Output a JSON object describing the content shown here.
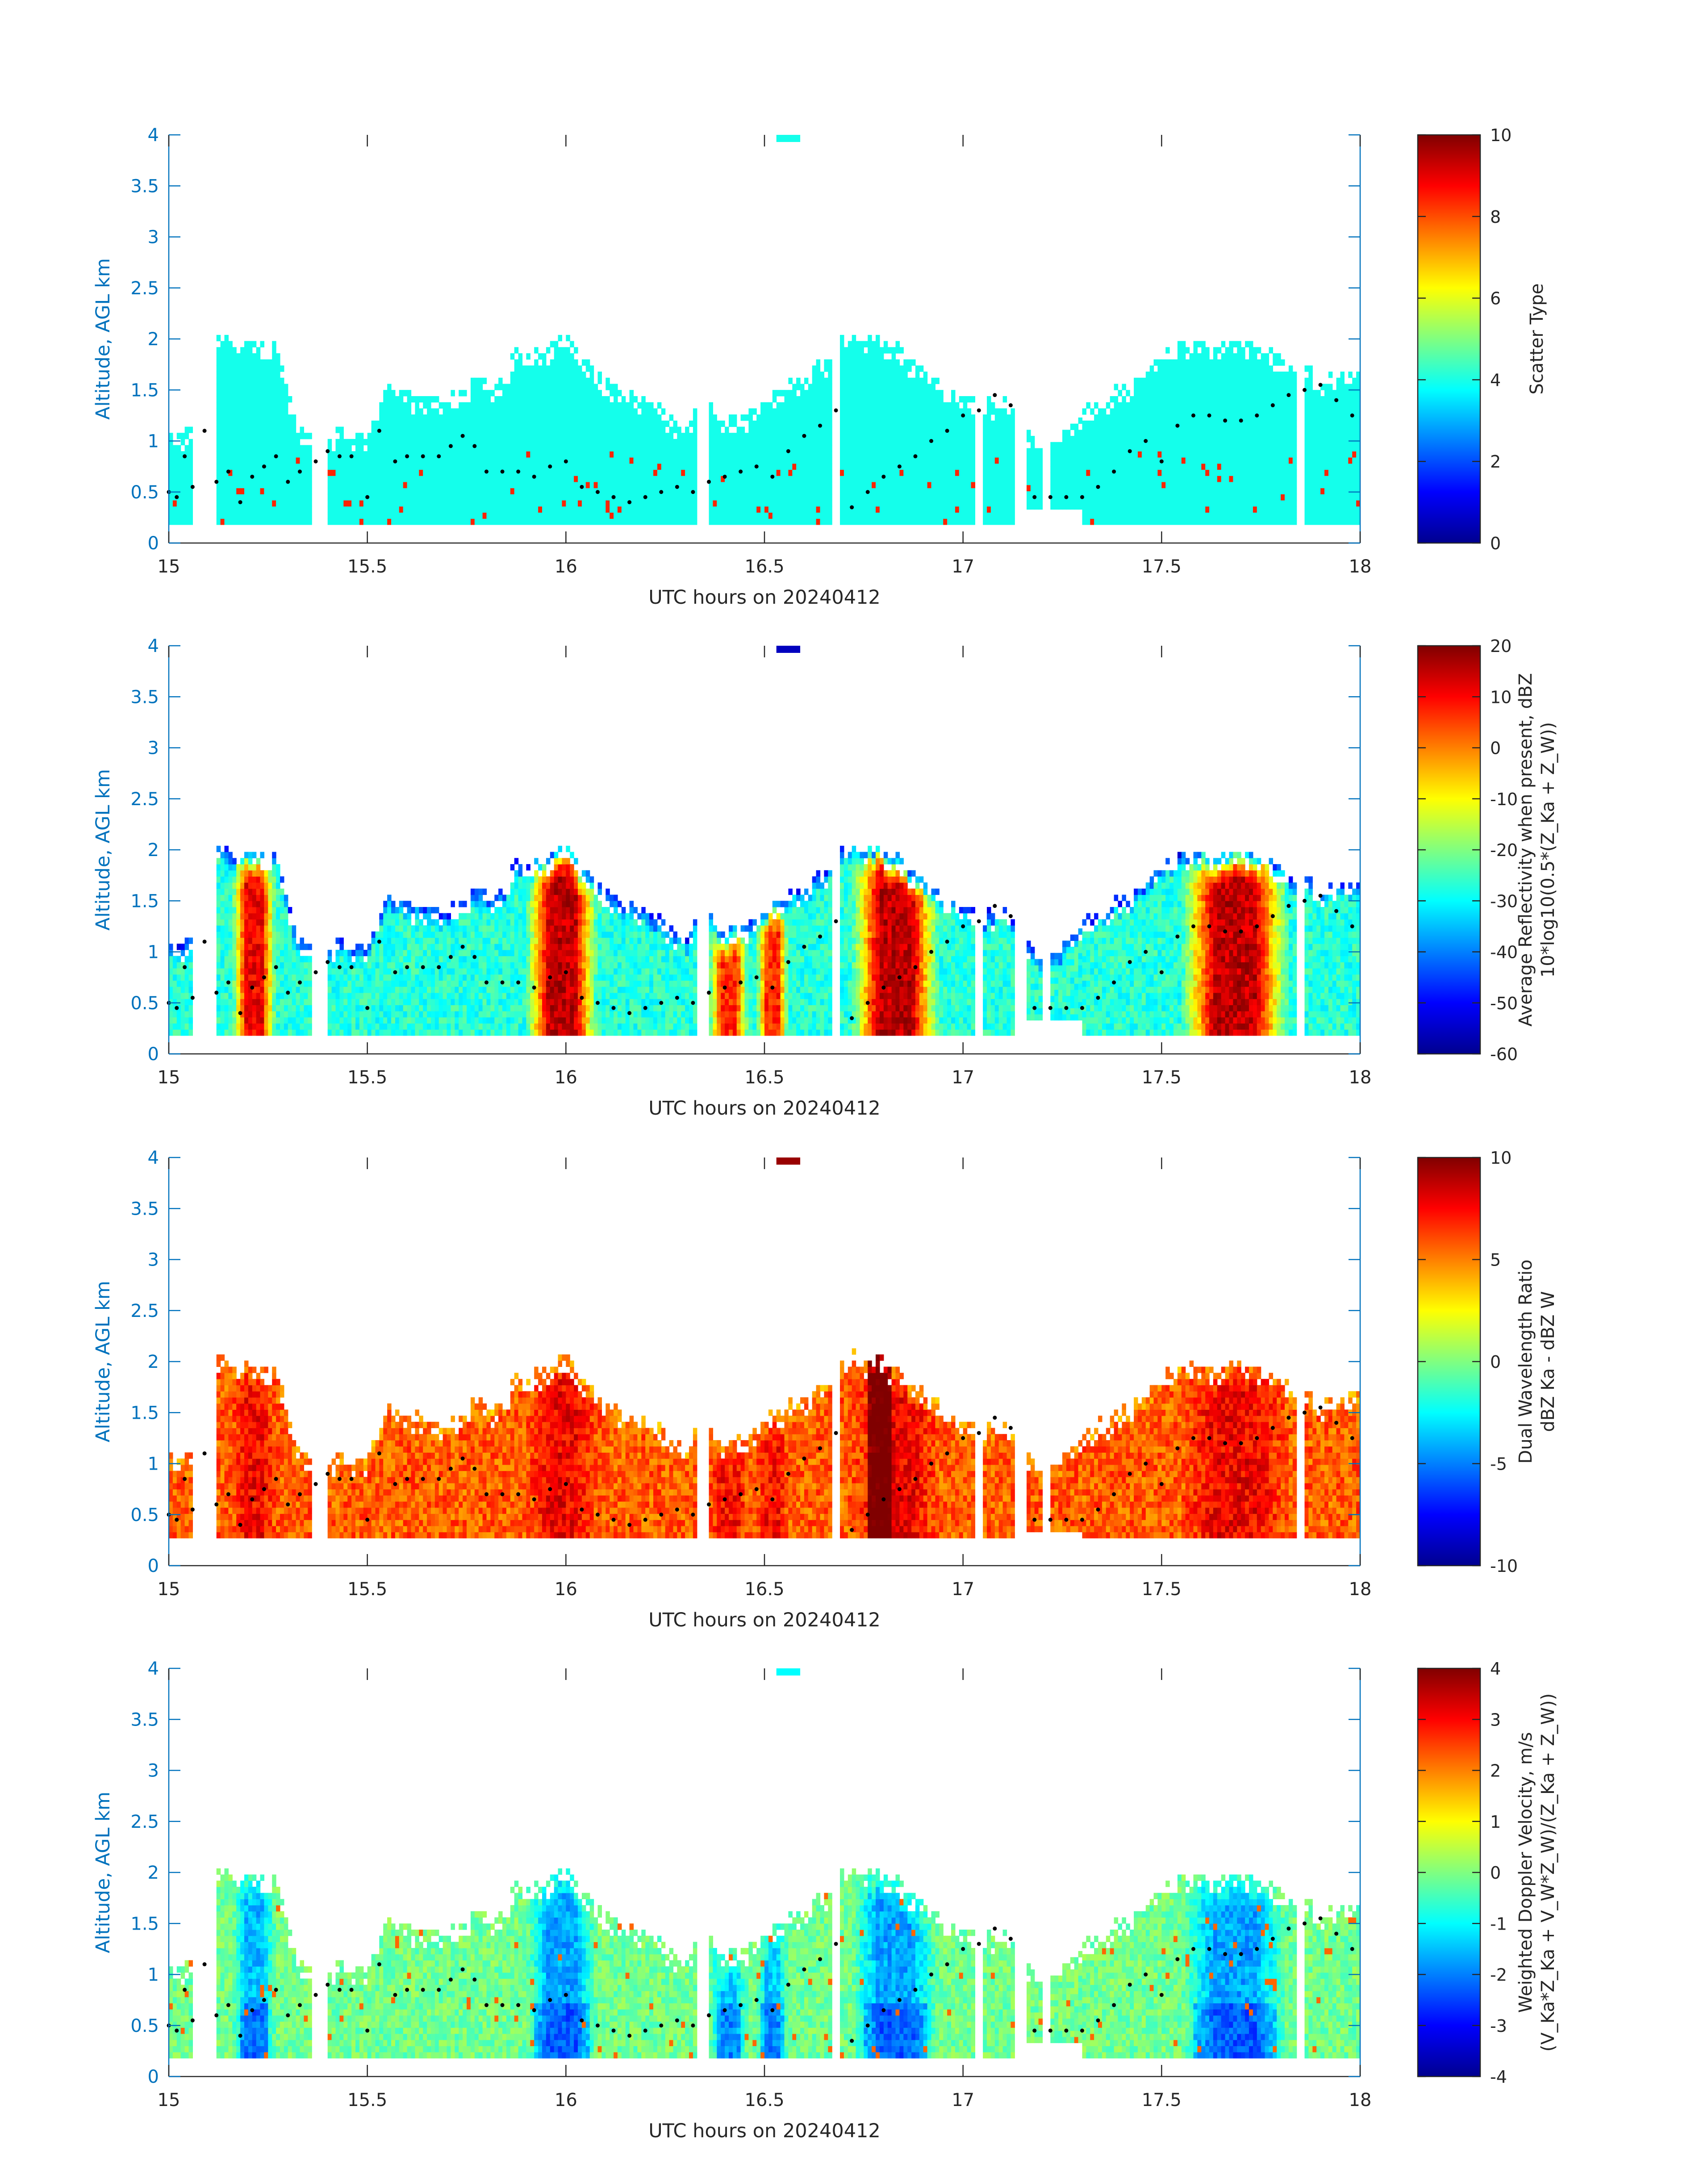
{
  "colors": {
    "axis": "#0072BD",
    "text": "#262626",
    "background": "#ffffff"
  },
  "chart_data": [
    {
      "type": "heatmap",
      "xlabel": "UTC hours on 20240412",
      "ylabel": "Altitude, AGL km",
      "xlim": [
        15,
        18
      ],
      "ylim": [
        0,
        4
      ],
      "x_ticks": [
        "15",
        "15.5",
        "16",
        "16.5",
        "17",
        "17.5",
        "18"
      ],
      "y_ticks": [
        "0",
        "0.5",
        "1",
        "1.5",
        "2",
        "2.5",
        "3",
        "3.5",
        "4"
      ],
      "colorbar": {
        "label_lines": [
          "Scatter Type"
        ],
        "range": [
          0,
          10
        ],
        "ticks": [
          "0",
          "2",
          "4",
          "6",
          "8",
          "10"
        ],
        "colormap": "jet"
      },
      "field": "scatter",
      "cloud_base_dots": true
    },
    {
      "type": "heatmap",
      "xlabel": "UTC hours on 20240412",
      "ylabel": "Altitude, AGL km",
      "xlim": [
        15,
        18
      ],
      "ylim": [
        0,
        4
      ],
      "x_ticks": [
        "15",
        "15.5",
        "16",
        "16.5",
        "17",
        "17.5",
        "18"
      ],
      "y_ticks": [
        "0",
        "0.5",
        "1",
        "1.5",
        "2",
        "2.5",
        "3",
        "3.5",
        "4"
      ],
      "colorbar": {
        "label_lines": [
          "Average Reflectivity when present, dBZ",
          "10*log10(0.5*(Z_Ka + Z_W))"
        ],
        "range": [
          -60,
          20
        ],
        "ticks": [
          "-60",
          "-50",
          "-40",
          "-30",
          "-20",
          "-10",
          "0",
          "10",
          "20"
        ],
        "colormap": "jet"
      },
      "field": "reflectivity",
      "cloud_base_dots": true
    },
    {
      "type": "heatmap",
      "xlabel": "UTC hours on 20240412",
      "ylabel": "Altitude, AGL km",
      "xlim": [
        15,
        18
      ],
      "ylim": [
        0,
        4
      ],
      "x_ticks": [
        "15",
        "15.5",
        "16",
        "16.5",
        "17",
        "17.5",
        "18"
      ],
      "y_ticks": [
        "0",
        "0.5",
        "1",
        "1.5",
        "2",
        "2.5",
        "3",
        "3.5",
        "4"
      ],
      "colorbar": {
        "label_lines": [
          "Dual Wavelength Ratio",
          "dBZ Ka - dBZ W"
        ],
        "range": [
          -10,
          10
        ],
        "ticks": [
          "-10",
          "-5",
          "0",
          "5",
          "10"
        ],
        "colormap": "jet"
      },
      "field": "dwr",
      "cloud_base_dots": true
    },
    {
      "type": "heatmap",
      "xlabel": "UTC hours on 20240412",
      "ylabel": "Altitude, AGL km",
      "xlim": [
        15,
        18
      ],
      "ylim": [
        0,
        4
      ],
      "x_ticks": [
        "15",
        "15.5",
        "16",
        "16.5",
        "17",
        "17.5",
        "18"
      ],
      "y_ticks": [
        "0",
        "0.5",
        "1",
        "1.5",
        "2",
        "2.5",
        "3",
        "3.5",
        "4"
      ],
      "colorbar": {
        "label_lines": [
          "Weighted Doppler Velocity, m/s",
          "(V_Ka*Z_Ka + V_W*Z_W)/(Z_Ka + Z_W))"
        ],
        "range": [
          -4,
          4
        ],
        "ticks": [
          "-4",
          "-3",
          "-2",
          "-1",
          "0",
          "1",
          "2",
          "3",
          "4"
        ],
        "colormap": "jet"
      },
      "field": "velocity",
      "cloud_base_dots": true
    }
  ],
  "cloud_top_km": [
    [
      15.0,
      1.05
    ],
    [
      15.08,
      1.1
    ],
    [
      15.1,
      2.0
    ],
    [
      15.16,
      1.95
    ],
    [
      15.2,
      2.0
    ],
    [
      15.27,
      1.95
    ],
    [
      15.32,
      1.1
    ],
    [
      15.45,
      1.05
    ],
    [
      15.5,
      1.05
    ],
    [
      15.55,
      1.55
    ],
    [
      15.62,
      1.45
    ],
    [
      15.7,
      1.35
    ],
    [
      15.76,
      1.6
    ],
    [
      15.82,
      1.45
    ],
    [
      15.88,
      1.85
    ],
    [
      15.95,
      1.9
    ],
    [
      16.0,
      2.05
    ],
    [
      16.05,
      1.75
    ],
    [
      16.12,
      1.55
    ],
    [
      16.18,
      1.4
    ],
    [
      16.25,
      1.3
    ],
    [
      16.3,
      1.1
    ],
    [
      16.35,
      1.4
    ],
    [
      16.4,
      1.15
    ],
    [
      16.46,
      1.25
    ],
    [
      16.52,
      1.45
    ],
    [
      16.58,
      1.6
    ],
    [
      16.64,
      1.7
    ],
    [
      16.7,
      2.05
    ],
    [
      16.76,
      2.0
    ],
    [
      16.82,
      1.95
    ],
    [
      16.88,
      1.75
    ],
    [
      16.95,
      1.55
    ],
    [
      17.0,
      1.45
    ],
    [
      17.05,
      1.3
    ],
    [
      17.1,
      1.45
    ],
    [
      17.15,
      1.1
    ],
    [
      17.22,
      0.9
    ],
    [
      17.3,
      1.25
    ],
    [
      17.36,
      1.4
    ],
    [
      17.42,
      1.55
    ],
    [
      17.48,
      1.75
    ],
    [
      17.55,
      1.95
    ],
    [
      17.65,
      1.95
    ],
    [
      17.75,
      1.95
    ],
    [
      17.82,
      1.75
    ],
    [
      17.9,
      1.6
    ],
    [
      17.96,
      1.7
    ],
    [
      18.0,
      1.7
    ]
  ],
  "cloud_gaps_hours": [
    [
      15.065,
      15.115
    ],
    [
      15.36,
      15.4
    ],
    [
      16.33,
      16.355
    ],
    [
      16.67,
      16.69
    ],
    [
      17.03,
      17.045
    ],
    [
      17.13,
      17.16
    ],
    [
      17.2,
      17.22
    ],
    [
      17.84,
      17.86
    ]
  ],
  "upper_cloud_patch": {
    "x": [
      16.53,
      16.59
    ],
    "y": [
      3.93,
      4.0
    ]
  },
  "cloud_base_dots_km": [
    [
      15.0,
      0.5
    ],
    [
      15.02,
      0.45
    ],
    [
      15.04,
      0.85
    ],
    [
      15.06,
      0.55
    ],
    [
      15.09,
      1.1
    ],
    [
      15.12,
      0.6
    ],
    [
      15.15,
      0.7
    ],
    [
      15.18,
      0.4
    ],
    [
      15.21,
      0.65
    ],
    [
      15.24,
      0.75
    ],
    [
      15.27,
      0.85
    ],
    [
      15.3,
      0.6
    ],
    [
      15.33,
      0.7
    ],
    [
      15.37,
      0.8
    ],
    [
      15.4,
      0.9
    ],
    [
      15.43,
      0.85
    ],
    [
      15.46,
      0.85
    ],
    [
      15.5,
      0.45
    ],
    [
      15.53,
      1.1
    ],
    [
      15.57,
      0.8
    ],
    [
      15.6,
      0.85
    ],
    [
      15.64,
      0.85
    ],
    [
      15.68,
      0.85
    ],
    [
      15.71,
      0.95
    ],
    [
      15.74,
      1.05
    ],
    [
      15.77,
      0.95
    ],
    [
      15.8,
      0.7
    ],
    [
      15.84,
      0.7
    ],
    [
      15.88,
      0.7
    ],
    [
      15.92,
      0.65
    ],
    [
      15.96,
      0.75
    ],
    [
      16.0,
      0.8
    ],
    [
      16.04,
      0.55
    ],
    [
      16.08,
      0.5
    ],
    [
      16.12,
      0.45
    ],
    [
      16.16,
      0.4
    ],
    [
      16.2,
      0.45
    ],
    [
      16.24,
      0.5
    ],
    [
      16.28,
      0.55
    ],
    [
      16.32,
      0.5
    ],
    [
      16.36,
      0.6
    ],
    [
      16.4,
      0.65
    ],
    [
      16.44,
      0.7
    ],
    [
      16.48,
      0.75
    ],
    [
      16.52,
      0.65
    ],
    [
      16.56,
      0.9
    ],
    [
      16.6,
      1.05
    ],
    [
      16.64,
      1.15
    ],
    [
      16.68,
      1.3
    ],
    [
      16.72,
      0.35
    ],
    [
      16.76,
      0.5
    ],
    [
      16.8,
      0.65
    ],
    [
      16.84,
      0.75
    ],
    [
      16.88,
      0.85
    ],
    [
      16.92,
      1.0
    ],
    [
      16.96,
      1.1
    ],
    [
      17.0,
      1.25
    ],
    [
      17.04,
      1.3
    ],
    [
      17.08,
      1.45
    ],
    [
      17.12,
      1.35
    ],
    [
      17.18,
      0.45
    ],
    [
      17.22,
      0.45
    ],
    [
      17.26,
      0.45
    ],
    [
      17.3,
      0.45
    ],
    [
      17.34,
      0.55
    ],
    [
      17.38,
      0.7
    ],
    [
      17.42,
      0.9
    ],
    [
      17.46,
      1.0
    ],
    [
      17.5,
      0.8
    ],
    [
      17.54,
      1.15
    ],
    [
      17.58,
      1.25
    ],
    [
      17.62,
      1.25
    ],
    [
      17.66,
      1.2
    ],
    [
      17.7,
      1.2
    ],
    [
      17.74,
      1.25
    ],
    [
      17.78,
      1.35
    ],
    [
      17.82,
      1.45
    ],
    [
      17.86,
      1.5
    ],
    [
      17.9,
      1.55
    ],
    [
      17.94,
      1.4
    ],
    [
      17.98,
      1.25
    ]
  ]
}
